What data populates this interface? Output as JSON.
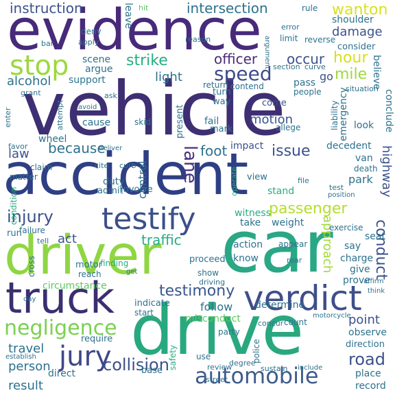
{
  "colors": {
    "background": "#ffffff",
    "palette": [
      "#440154",
      "#472c7a",
      "#3b518b",
      "#2c718e",
      "#21908d",
      "#27ad81",
      "#5cc863",
      "#aadc32",
      "#fde725"
    ]
  },
  "words": [
    {
      "text": "vehicle",
      "color": "#3e2f73"
    },
    {
      "text": "evidence",
      "color": "#472a7a"
    },
    {
      "text": "accident",
      "color": "#2f3f84"
    },
    {
      "text": "car",
      "color": "#2aa784"
    },
    {
      "text": "drive",
      "color": "#29a87f"
    },
    {
      "text": "driver",
      "color": "#8fd642"
    },
    {
      "text": "truck",
      "color": "#3b2f70"
    },
    {
      "text": "verdict",
      "color": "#3e4f8a"
    },
    {
      "text": "testify",
      "color": "#3b4f8a"
    },
    {
      "text": "automobile",
      "color": "#3e5c8c"
    },
    {
      "text": "stop",
      "color": "#9bd93c"
    },
    {
      "text": "speed",
      "color": "#3d4d8a"
    },
    {
      "text": "passenger",
      "color": "#b5de2b"
    },
    {
      "text": "negligence",
      "color": "#7ad151"
    },
    {
      "text": "jury",
      "color": "#3f4788"
    },
    {
      "text": "testimony",
      "color": "#39568c"
    },
    {
      "text": "injury",
      "color": "#3b518b"
    },
    {
      "text": "strike",
      "color": "#27ad81"
    },
    {
      "text": "officer",
      "color": "#4a2c7a"
    },
    {
      "text": "intersection",
      "color": "#2c718e"
    },
    {
      "text": "wanton",
      "color": "#d9e021"
    },
    {
      "text": "instruction",
      "color": "#3b518b"
    },
    {
      "text": "damage",
      "color": "#3b528b"
    },
    {
      "text": "hour",
      "color": "#d5e21a"
    },
    {
      "text": "occur",
      "color": "#3b518b"
    },
    {
      "text": "mile",
      "color": "#9dd93b"
    },
    {
      "text": "light",
      "color": "#2c718e"
    },
    {
      "text": "alcohol",
      "color": "#2c718e"
    },
    {
      "text": "support",
      "color": "#2a778e"
    },
    {
      "text": "scene",
      "color": "#2c718e"
    },
    {
      "text": "argue",
      "color": "#2c718e"
    },
    {
      "text": "because",
      "color": "#2c718e"
    },
    {
      "text": "control",
      "color": "#2c718e"
    },
    {
      "text": "lane",
      "color": "#46327e"
    },
    {
      "text": "foot",
      "color": "#2c718e"
    },
    {
      "text": "issue",
      "color": "#3b518b"
    },
    {
      "text": "impact",
      "color": "#3b518b"
    },
    {
      "text": "motion",
      "color": "#3b518b"
    },
    {
      "text": "conduct",
      "color": "#3b518b"
    },
    {
      "text": "highway",
      "color": "#3b518b"
    },
    {
      "text": "road",
      "color": "#3b518b"
    },
    {
      "text": "traffic",
      "color": "#27ad81"
    },
    {
      "text": "act",
      "color": "#3b518b"
    },
    {
      "text": "collision",
      "color": "#3b518b"
    },
    {
      "text": "travel",
      "color": "#2c718e"
    },
    {
      "text": "person",
      "color": "#2c718e"
    },
    {
      "text": "result",
      "color": "#2c718e"
    },
    {
      "text": "law",
      "color": "#3b518b"
    },
    {
      "text": "cause",
      "color": "#2c718e"
    },
    {
      "text": "skid",
      "color": "#2c718e"
    },
    {
      "text": "wheel",
      "color": "#2c718e"
    },
    {
      "text": "fail",
      "color": "#2c718e"
    },
    {
      "text": "mark",
      "color": "#2c718e"
    },
    {
      "text": "come",
      "color": "#3b518b"
    },
    {
      "text": "turn",
      "color": "#2c718e"
    },
    {
      "text": "way",
      "color": "#2c718e"
    },
    {
      "text": "return",
      "color": "#2c718e"
    },
    {
      "text": "go",
      "color": "#3b518b"
    },
    {
      "text": "pass",
      "color": "#2c718e"
    },
    {
      "text": "liability",
      "color": "#2c718e"
    },
    {
      "text": "emergency",
      "color": "#2c718e"
    },
    {
      "text": "believe",
      "color": "#2c718e"
    },
    {
      "text": "conclude",
      "color": "#2c718e"
    },
    {
      "text": "consider",
      "color": "#2c718e"
    },
    {
      "text": "shoulder",
      "color": "#2c718e"
    },
    {
      "text": "record",
      "color": "#2c718e"
    },
    {
      "text": "place",
      "color": "#2c718e"
    },
    {
      "text": "observe",
      "color": "#2c718e"
    },
    {
      "text": "direction",
      "color": "#2c718e"
    },
    {
      "text": "point",
      "color": "#3b518b"
    },
    {
      "text": "prove",
      "color": "#2c718e"
    },
    {
      "text": "give",
      "color": "#2c718e"
    },
    {
      "text": "charge",
      "color": "#2c718e"
    },
    {
      "text": "say",
      "color": "#2c718e"
    },
    {
      "text": "know",
      "color": "#2c718e"
    },
    {
      "text": "action",
      "color": "#2c718e"
    },
    {
      "text": "approach",
      "color": "#a0da39"
    },
    {
      "text": "determine",
      "color": "#2c718e"
    },
    {
      "text": "follow",
      "color": "#2c718e"
    },
    {
      "text": "witness",
      "color": "#27ad81"
    },
    {
      "text": "weight",
      "color": "#2c718e"
    },
    {
      "text": "take",
      "color": "#2c718e"
    },
    {
      "text": "stand",
      "color": "#27ad81"
    },
    {
      "text": "view",
      "color": "#2c718e"
    },
    {
      "text": "park",
      "color": "#2c718e"
    },
    {
      "text": "decedent",
      "color": "#2c718e"
    },
    {
      "text": "van",
      "color": "#2c718e"
    },
    {
      "text": "death",
      "color": "#2c718e"
    },
    {
      "text": "look",
      "color": "#2c718e"
    },
    {
      "text": "duty",
      "color": "#2c718e"
    },
    {
      "text": "admit",
      "color": "#2c718e"
    },
    {
      "text": "involve",
      "color": "#2c718e"
    },
    {
      "text": "indicate",
      "color": "#2c718e"
    },
    {
      "text": "misconduct",
      "color": "#5cc863"
    },
    {
      "text": "require",
      "color": "#2c718e"
    },
    {
      "text": "base",
      "color": "#2c718e"
    },
    {
      "text": "direct",
      "color": "#2c718e"
    },
    {
      "text": "circumstance",
      "color": "#5cc863"
    },
    {
      "text": "motor",
      "color": "#2c718e"
    },
    {
      "text": "finding",
      "color": "#27ad81"
    },
    {
      "text": "proceed",
      "color": "#2c718e"
    },
    {
      "text": "run",
      "color": "#2c718e"
    },
    {
      "text": "condition",
      "color": "#27ad81"
    },
    {
      "text": "cross",
      "color": "#2c718e"
    },
    {
      "text": "reach",
      "color": "#2c718e"
    },
    {
      "text": "safety",
      "color": "#27ad81"
    },
    {
      "text": "use",
      "color": "#2c718e"
    },
    {
      "text": "police",
      "color": "#2c718e"
    },
    {
      "text": "party",
      "color": "#2c718e"
    },
    {
      "text": "count",
      "color": "#2c718e"
    },
    {
      "text": "seat",
      "color": "#2c718e"
    },
    {
      "text": "exercise",
      "color": "#2c718e"
    },
    {
      "text": "appear",
      "color": "#2c718e"
    },
    {
      "text": "show",
      "color": "#2c718e"
    },
    {
      "text": "failure",
      "color": "#2c718e"
    },
    {
      "text": "tell",
      "color": "#2c718e"
    },
    {
      "text": "claim",
      "color": "#2c718e"
    },
    {
      "text": "matter",
      "color": "#2c718e"
    },
    {
      "text": "enter",
      "color": "#2c718e"
    },
    {
      "text": "favor",
      "color": "#2c718e"
    },
    {
      "text": "attempt",
      "color": "#2c718e"
    },
    {
      "text": "present",
      "color": "#2c718e"
    },
    {
      "text": "allege",
      "color": "#2c718e"
    },
    {
      "text": "contend",
      "color": "#2c718e"
    },
    {
      "text": "people",
      "color": "#2c718e"
    },
    {
      "text": "situation",
      "color": "#2c718e"
    },
    {
      "text": "section",
      "color": "#2c718e"
    },
    {
      "text": "curve",
      "color": "#2c718e"
    },
    {
      "text": "reverse",
      "color": "#2c718e"
    },
    {
      "text": "limit",
      "color": "#2c718e"
    },
    {
      "text": "error",
      "color": "#2c718e"
    },
    {
      "text": "rule",
      "color": "#2c718e"
    },
    {
      "text": "reason",
      "color": "#2c718e"
    },
    {
      "text": "leave",
      "color": "#2c718e"
    },
    {
      "text": "hit",
      "color": "#5cc863"
    },
    {
      "text": "deny",
      "color": "#2c718e"
    },
    {
      "text": "apply",
      "color": "#2c718e"
    },
    {
      "text": "bar",
      "color": "#2c718e"
    },
    {
      "text": "grant",
      "color": "#2c718e"
    },
    {
      "text": "ask",
      "color": "#2c718e"
    },
    {
      "text": "avoid",
      "color": "#2c718e"
    },
    {
      "text": "argument",
      "color": "#2c718e"
    },
    {
      "text": "curb",
      "color": "#2c718e"
    },
    {
      "text": "deliver",
      "color": "#2c718e"
    },
    {
      "text": "cite",
      "color": "#2c718e"
    },
    {
      "text": "rear",
      "color": "#2c718e"
    },
    {
      "text": "test",
      "color": "#2c718e"
    },
    {
      "text": "position",
      "color": "#2c718e"
    },
    {
      "text": "street",
      "color": "#2c718e"
    },
    {
      "text": "sustain",
      "color": "#2c718e"
    },
    {
      "text": "include",
      "color": "#2c718e"
    },
    {
      "text": "degree",
      "color": "#2c718e"
    },
    {
      "text": "concur",
      "color": "#2c718e"
    },
    {
      "text": "start",
      "color": "#2c718e"
    },
    {
      "text": "driving",
      "color": "#2c718e"
    },
    {
      "text": "operate",
      "color": "#27ad81"
    },
    {
      "text": "establish",
      "color": "#2c718e"
    },
    {
      "text": "review",
      "color": "#2c718e"
    },
    {
      "text": "file",
      "color": "#2c718e"
    },
    {
      "text": "motorcycle",
      "color": "#2c718e"
    },
    {
      "text": "affirm",
      "color": "#2c718e"
    },
    {
      "text": "think",
      "color": "#2c718e"
    },
    {
      "text": "day",
      "color": "#2c718e"
    },
    {
      "text": "get",
      "color": "#2c718e"
    }
  ]
}
